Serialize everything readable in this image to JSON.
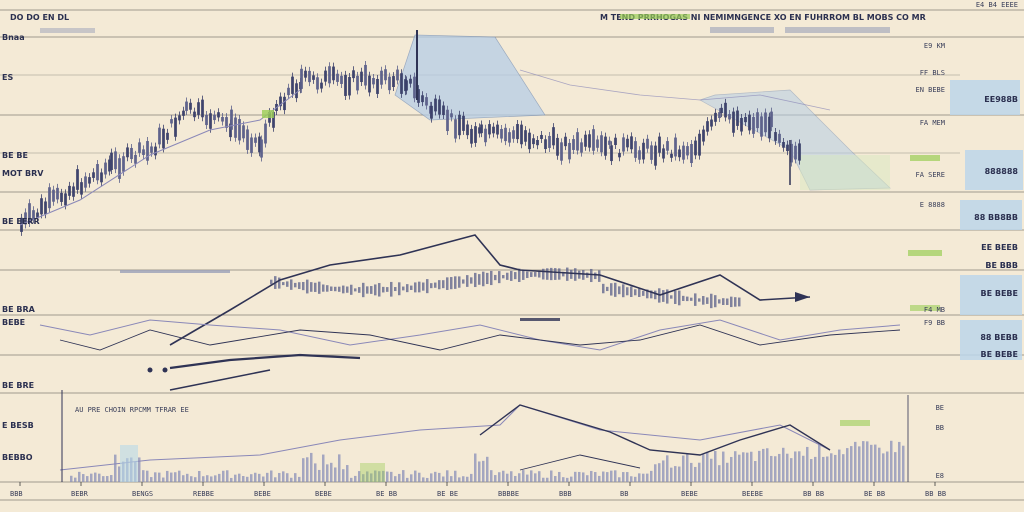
{
  "header": {
    "title_left": "DO DO EN DL",
    "title_center": "M TEND PRRHOGAS NI NEMIMNGENCE XO EN FUHRROM BL MOBS CO MR",
    "title_right": "E4 B4 EEEE"
  },
  "colors": {
    "background": "#f4ead6",
    "candle": "#5a5f8a",
    "candle_dark": "#3a3f6a",
    "price_area": "#b6cde6",
    "green_accent": "#9acd55",
    "blue_tag": "#bcd6ea",
    "line_dark": "#2f3355",
    "line_light": "#8a88b8",
    "grid": "#3a3a3a"
  },
  "chart_data": [
    {
      "type": "candlestick",
      "panel": "main",
      "right_labels": [
        "E9 KM",
        "FF BLS",
        "EN BEBE",
        "FA MEM",
        "FA SERE",
        "E 8888"
      ],
      "right_tags": [
        "EE988B",
        "888888",
        "88 BB8BB",
        "BE BEBE",
        "88 BEBB"
      ],
      "left_labels": [
        "Bnaa",
        "ES",
        "MOT BRV",
        "BE BE",
        "BE EERR"
      ]
    },
    {
      "type": "line",
      "panel": "middle",
      "left_labels": [
        "BE BRA",
        "BEBE"
      ],
      "right_labels": [
        "F4 MB",
        "F9 BB"
      ],
      "right_tags": [
        "EE BEEB",
        "BE BBB",
        "BE BEBE"
      ]
    },
    {
      "type": "bar",
      "panel": "lower",
      "left_labels": [
        "BE BRE",
        "E BESB",
        "BEBBO"
      ],
      "caption": "AU PRE CHOIN RPCMM TFRAR EE",
      "right_labels": [
        "BE",
        "BB",
        "E8"
      ]
    },
    {
      "type": "axis",
      "panel": "x",
      "ticks": [
        "BBB",
        "BEBR",
        "BENGS",
        "REBBE",
        "BEBE",
        "BEBE",
        "BE BB",
        "BE BE",
        "BBBBE",
        "BBB",
        "BB",
        "BEBE",
        "BEEBE",
        "BB BB",
        "BE BB",
        "BB BB"
      ]
    }
  ]
}
